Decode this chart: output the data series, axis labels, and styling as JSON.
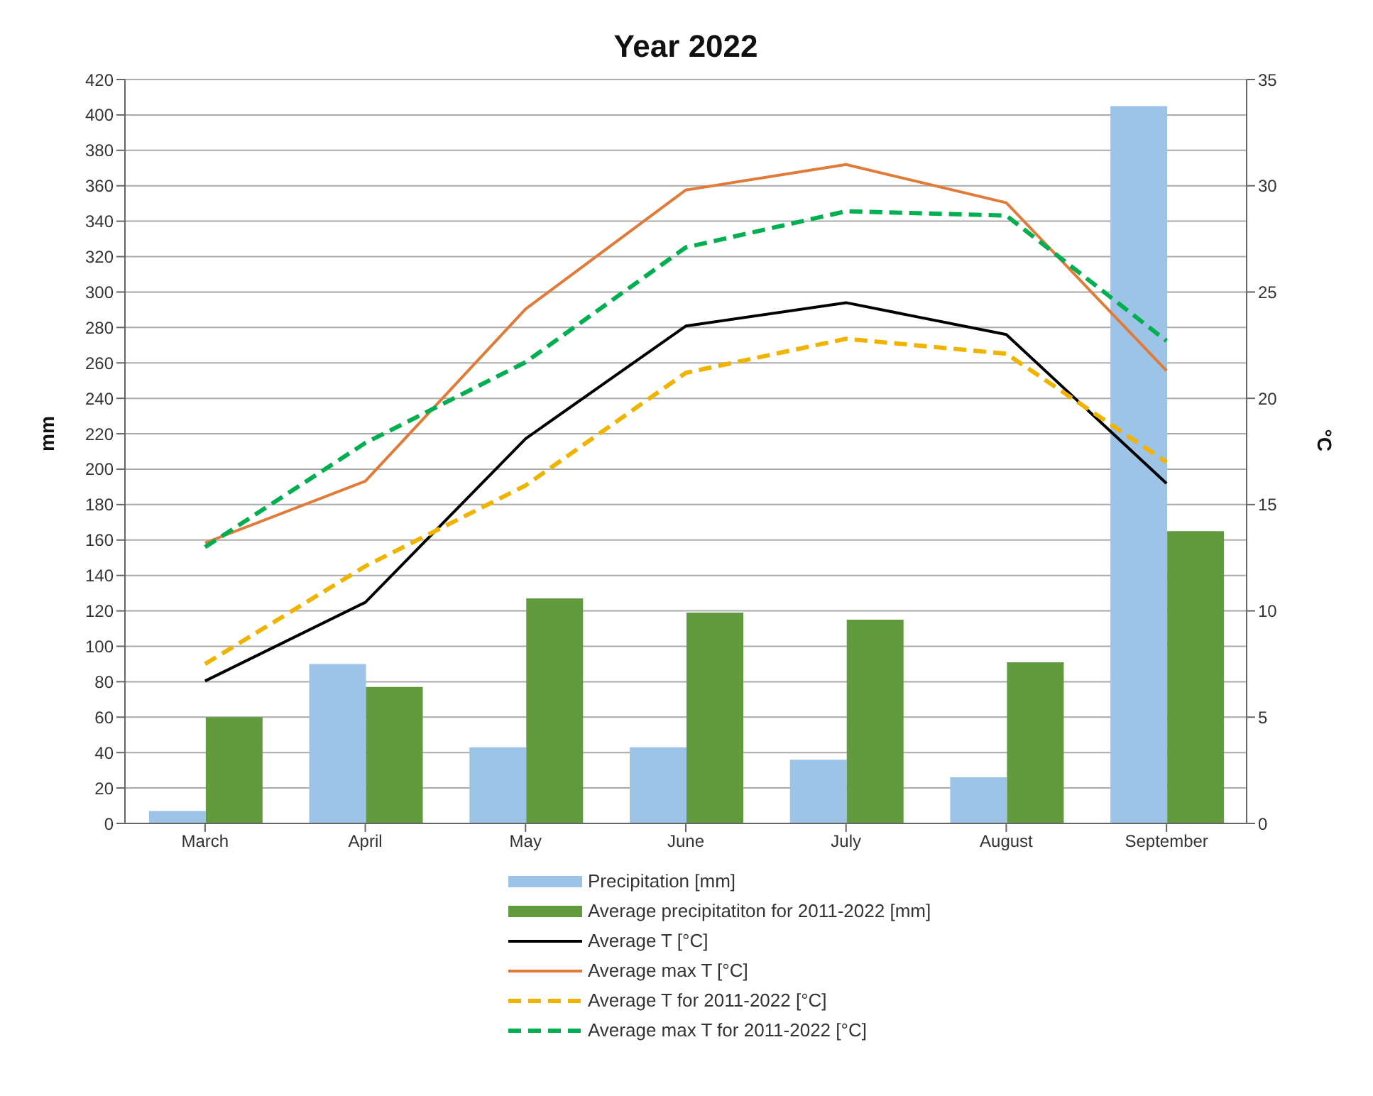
{
  "chart_data": {
    "type": "bar",
    "title": "Year 2022",
    "ylabel": "mm",
    "y2label": "°C",
    "categories": [
      "March",
      "April",
      "May",
      "June",
      "July",
      "August",
      "September"
    ],
    "series": [
      {
        "name": "Precipitation [mm]",
        "color": "#9dc3e6",
        "values": [
          7,
          90,
          43,
          43,
          36,
          26,
          405
        ]
      },
      {
        "name": "Average precipitatiton for 2011-2022 [mm]",
        "color": "#629a3e",
        "values": [
          60,
          77,
          127,
          119,
          115,
          91,
          165
        ]
      },
      {
        "name": "Average T [°C]",
        "type": "line",
        "axis": "y2",
        "color": "#000000",
        "line_style": "solid",
        "values": [
          6.7,
          10.4,
          18.1,
          23.4,
          24.5,
          23,
          16
        ]
      },
      {
        "name": "Average max T [°C]",
        "type": "line",
        "axis": "y2",
        "color": "#e07b39",
        "line_style": "solid",
        "values": [
          13.2,
          16.1,
          24.2,
          29.8,
          31,
          29.2,
          21.3
        ]
      },
      {
        "name": "Average T for  2011-2022 [°C]",
        "type": "line",
        "axis": "y2",
        "color": "#f0b400",
        "line_style": "dashed",
        "values": [
          7.5,
          12.1,
          15.9,
          21.2,
          22.8,
          22.1,
          17
        ]
      },
      {
        "name": "Average max T for 2011-2022 [°C]",
        "type": "line",
        "axis": "y2",
        "color": "#00b050",
        "line_style": "dashed",
        "values": [
          13,
          17.9,
          21.7,
          27.1,
          28.8,
          28.6,
          22.7
        ]
      }
    ],
    "ylim": [
      0,
      420
    ],
    "yticks": [
      0,
      20,
      40,
      60,
      80,
      100,
      120,
      140,
      160,
      180,
      200,
      220,
      240,
      260,
      280,
      300,
      320,
      340,
      360,
      380,
      400,
      420
    ],
    "y2lim": [
      0,
      35
    ],
    "y2ticks": [
      0,
      5,
      10,
      15,
      20,
      25,
      30,
      35
    ],
    "grid": "y",
    "legend": "bottom",
    "marker": "none"
  }
}
